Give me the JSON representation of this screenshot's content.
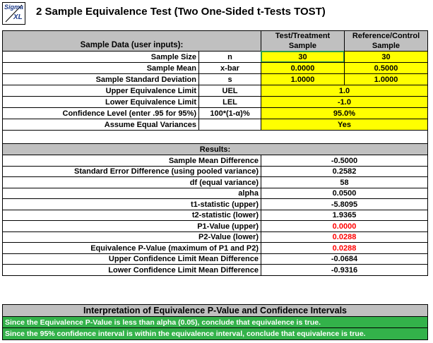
{
  "logo": {
    "line1": "Sigma",
    "line2": "XL"
  },
  "title": "2 Sample Equivalence Test (Two One-Sided t-Tests TOST)",
  "input_section": {
    "header": "Sample Data (user inputs):",
    "col1_line1": "Test/Treatment",
    "col1_line2": "Sample",
    "col2_line1": "Reference/Control",
    "col2_line2": "Sample",
    "rows": [
      {
        "label": "Sample Size",
        "symbol": "n",
        "v1": "30",
        "v2": "30"
      },
      {
        "label": "Sample Mean",
        "symbol": "x-bar",
        "v1": "0.0000",
        "v2": "0.5000"
      },
      {
        "label": "Sample Standard Deviation",
        "symbol": "s",
        "v1": "1.0000",
        "v2": "1.0000"
      }
    ],
    "merged_rows": [
      {
        "label": "Upper Equivalence Limit",
        "symbol": "UEL",
        "value": "1.0"
      },
      {
        "label": "Lower Equivalence Limit",
        "symbol": "LEL",
        "value": "-1.0"
      },
      {
        "label": "Confidence Level (enter .95 for 95%)",
        "symbol": "100*(1-α)%",
        "value": "95.0%"
      },
      {
        "label": "Assume Equal Variances",
        "symbol": "",
        "value": "Yes"
      }
    ]
  },
  "results": {
    "header": "Results:",
    "rows": [
      {
        "label": "Sample Mean Difference",
        "value": "-0.5000"
      },
      {
        "label": "Standard Error Difference (using pooled variance)",
        "value": "0.2582"
      },
      {
        "label": "df (equal variance)",
        "value": "58"
      },
      {
        "label": "alpha",
        "value": "0.0500"
      },
      {
        "label": "t1-statistic (upper)",
        "value": "-5.8095"
      },
      {
        "label": "t2-statistic (lower)",
        "value": "1.9365"
      },
      {
        "label": "P1-Value (upper)",
        "value": "0.0000"
      },
      {
        "label": "P2-Value (lower)",
        "value": "0.0288"
      },
      {
        "label": "Equivalence P-Value (maximum of P1 and P2)",
        "value": "0.0288"
      },
      {
        "label": "Upper Confidence Limit Mean Difference",
        "value": "-0.0684"
      },
      {
        "label": "Lower Confidence Limit Mean Difference",
        "value": "-0.9316"
      }
    ]
  },
  "interpretation": {
    "header": "Interpretation of Equivalence P-Value and Confidence Intervals",
    "line1": "Since the Equivalence P-Value is less than alpha (0.05), conclude that equivalence is true.",
    "line2": "Since the 95% confidence interval is within the equivalence interval, conclude that equivalence is true."
  },
  "colors": {
    "yellow": "#ffff00",
    "gray": "#c0c0c0",
    "green": "#33b24a",
    "red": "#ff0000"
  }
}
